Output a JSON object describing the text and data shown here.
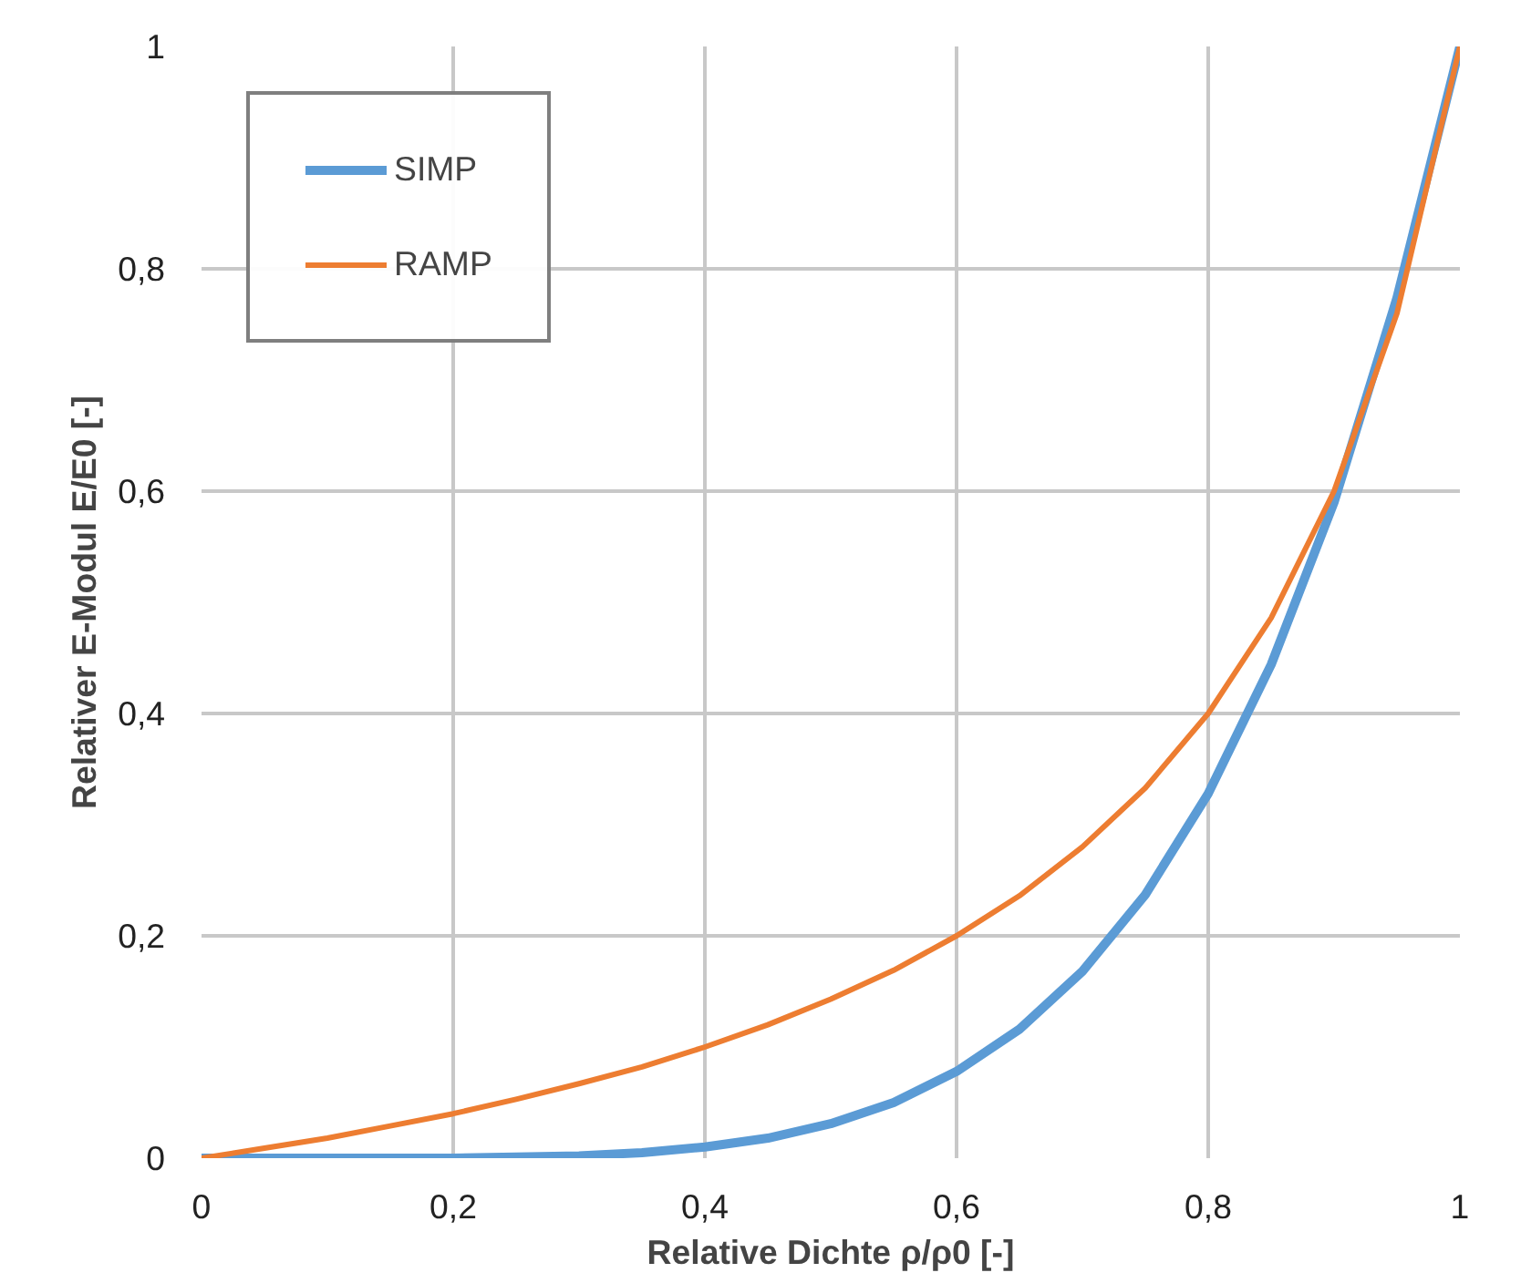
{
  "chart_data": {
    "type": "line",
    "xlabel": "Relative Dichte ρ/ρ0 [-]",
    "ylabel": "Relativer E-Modul E/E0 [-]",
    "x": [
      0,
      0.05,
      0.1,
      0.15,
      0.2,
      0.25,
      0.3,
      0.35,
      0.4,
      0.45,
      0.5,
      0.55,
      0.6,
      0.65,
      0.7,
      0.75,
      0.8,
      0.85,
      0.9,
      0.95,
      1
    ],
    "series": [
      {
        "name": "SIMP",
        "color": "#5b9bd5",
        "values": [
          0,
          0,
          0,
          0,
          0,
          0.001,
          0.002,
          0.005,
          0.01,
          0.018,
          0.031,
          0.05,
          0.078,
          0.116,
          0.168,
          0.237,
          0.328,
          0.444,
          0.59,
          0.774,
          1
        ]
      },
      {
        "name": "RAMP",
        "color": "#ed7d31",
        "values": [
          0,
          0.009,
          0.018,
          0.029,
          0.04,
          0.053,
          0.067,
          0.082,
          0.1,
          0.12,
          0.143,
          0.169,
          0.2,
          0.236,
          0.28,
          0.333,
          0.4,
          0.486,
          0.6,
          0.76,
          1
        ]
      }
    ],
    "xlim": [
      0,
      1
    ],
    "ylim": [
      0,
      1
    ],
    "xticks": [
      0,
      {
        "value": 0.2,
        "label": "0,2"
      },
      {
        "value": 0.4,
        "label": "0,4"
      },
      {
        "value": 0.6,
        "label": "0,6"
      },
      {
        "value": 0.8,
        "label": "0,8"
      },
      1
    ],
    "yticks": [
      0,
      {
        "value": 0.2,
        "label": "0,2"
      },
      {
        "value": 0.4,
        "label": "0,4"
      },
      {
        "value": 0.6,
        "label": "0,6"
      },
      {
        "value": 0.8,
        "label": "0,8"
      },
      1
    ],
    "grid": true,
    "legend": "top left",
    "marker": "none",
    "line_style": "solid"
  }
}
